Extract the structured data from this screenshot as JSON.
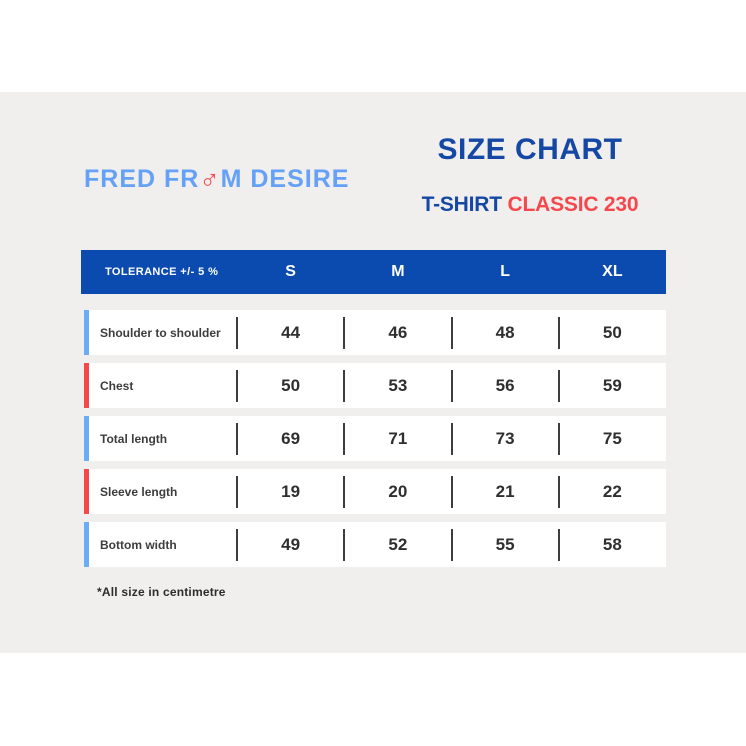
{
  "page": {
    "background_color": "#f0efed",
    "footnote": "*All size in centimetre"
  },
  "brand": {
    "logo_text": "FRED FROM DESIRE",
    "logo_before_o": "FRED FR",
    "logo_o_mars_symbol": "♂",
    "logo_after_o": "M DESIRE",
    "logo_color": "#64a1f7",
    "mars_color": "#f2494e"
  },
  "header": {
    "title": "SIZE CHART",
    "subtitle_product": "T-SHIRT",
    "subtitle_model": "CLASSIC 230",
    "title_color": "#1547a5",
    "model_color": "#f4484c"
  },
  "chart_data": {
    "type": "table",
    "title": "SIZE CHART",
    "subtitle": "T-SHIRT CLASSIC 230",
    "columns": [
      "TOLERANCE +/- 5 %",
      "S",
      "M",
      "L",
      "XL"
    ],
    "header_bg_color": "#0b4bb0",
    "accent_blue": "#6aacf8",
    "accent_red": "#f4484c",
    "rows": [
      {
        "label": "Shoulder to shoulder",
        "accent_color": "#6aacf8",
        "values": [
          44,
          46,
          48,
          50
        ]
      },
      {
        "label": "Chest",
        "accent_color": "#f4484c",
        "values": [
          50,
          53,
          56,
          59
        ]
      },
      {
        "label": "Total length",
        "accent_color": "#6aacf8",
        "values": [
          69,
          71,
          73,
          75
        ]
      },
      {
        "label": "Sleeve length",
        "accent_color": "#f4484c",
        "values": [
          19,
          20,
          21,
          22
        ]
      },
      {
        "label": "Bottom width",
        "accent_color": "#6aacf8",
        "values": [
          49,
          52,
          55,
          58
        ]
      }
    ],
    "footnote": "*All size in centimetre",
    "units": "cm"
  }
}
